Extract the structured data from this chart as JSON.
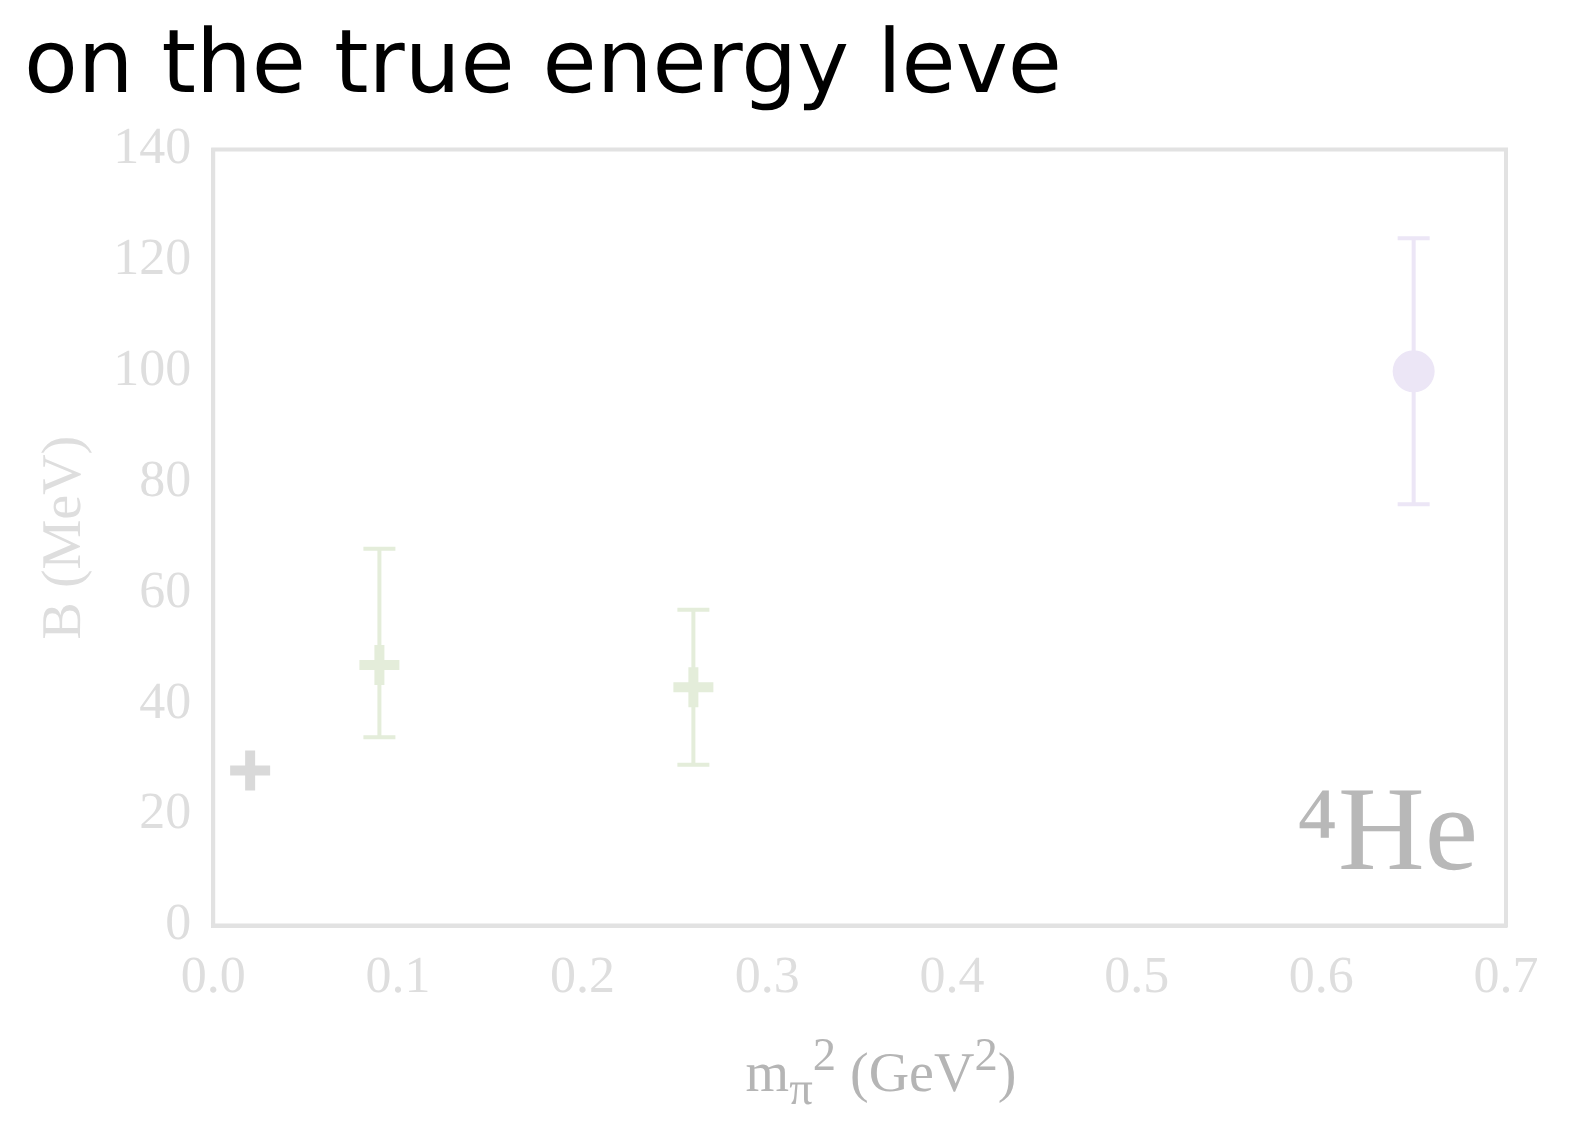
{
  "chart_data": {
    "type": "scatter",
    "title": "on the true energy leve",
    "xlabel": "m$_{π}$$^{2}$ (GeV$^{2}$)",
    "ylabel": "B (MeV)",
    "annotations": [
      "⁴He"
    ],
    "xlim": [
      0,
      0.7
    ],
    "xticks": [
      {
        "value": 0,
        "label": "0.0"
      },
      0.1,
      0.2,
      0.3,
      0.4,
      0.5,
      0.6,
      0.7
    ],
    "ylim": [
      0,
      140
    ],
    "yticks": [
      0,
      20,
      40,
      60,
      80,
      100,
      120,
      140
    ],
    "grid": false,
    "legend": false,
    "series": [
      {
        "color": "#d9d9d9",
        "marker": "cross",
        "x": [
          0.02
        ],
        "values": [
          28
        ],
        "errors": [
          null
        ]
      },
      {
        "color": "#e4edda",
        "marker": "cross",
        "x": [
          0.09
        ],
        "values": [
          47
        ],
        "errors": [
          [
            34,
            68
          ]
        ]
      },
      {
        "color": "#e4edda",
        "marker": "cross",
        "x": [
          0.26
        ],
        "values": [
          43
        ],
        "errors": [
          [
            29,
            57
          ]
        ]
      },
      {
        "color": "#ece6f6",
        "marker": "circle",
        "x": [
          0.65
        ],
        "values": [
          100
        ],
        "errors": [
          [
            76,
            124
          ]
        ]
      }
    ]
  }
}
